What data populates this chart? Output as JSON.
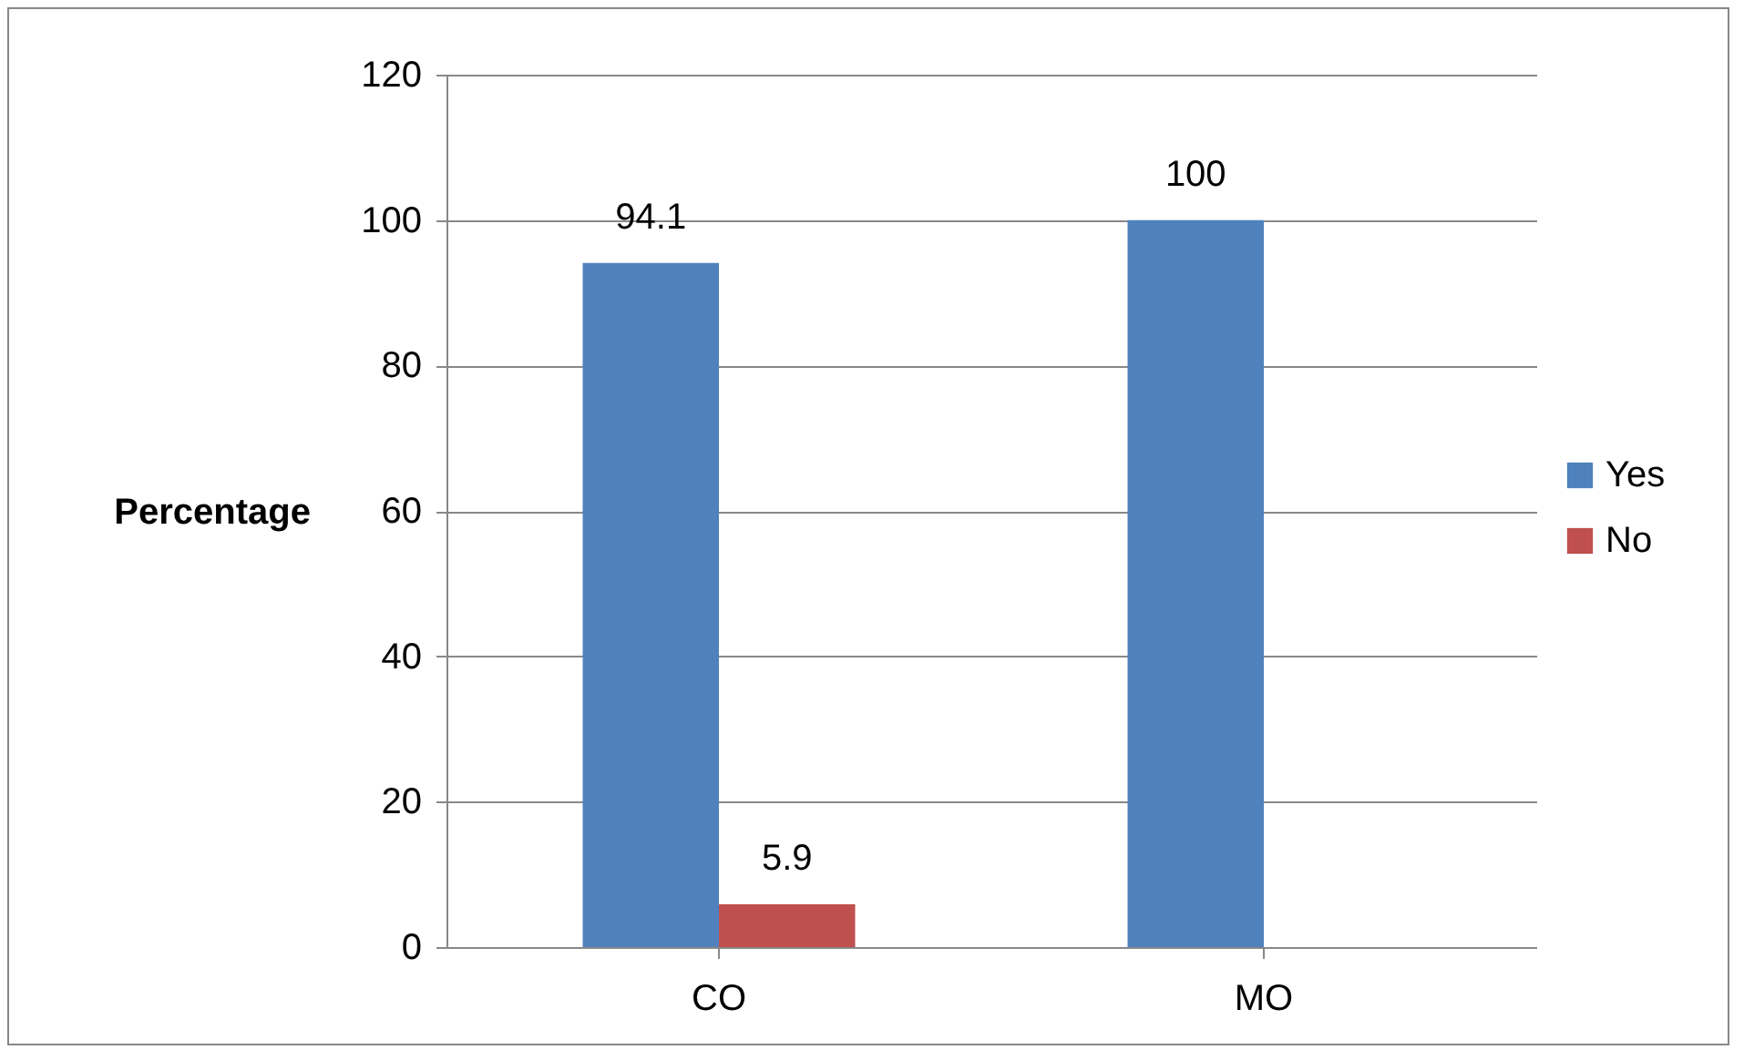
{
  "chart_data": {
    "type": "bar",
    "ylabel": "Percentage",
    "categories": [
      "CO",
      "MO"
    ],
    "series": [
      {
        "name": "Yes",
        "color": "#4f81bd",
        "values": [
          94.1,
          100
        ],
        "value_labels": [
          "94.1",
          "100"
        ]
      },
      {
        "name": "No",
        "color": "#c0504d",
        "values": [
          5.9,
          0
        ],
        "value_labels": [
          "5.9",
          null
        ]
      }
    ],
    "ylim": [
      0,
      120
    ],
    "yticks": [
      0,
      20,
      40,
      60,
      80,
      100,
      120
    ],
    "grid": "y",
    "legend": "right"
  }
}
